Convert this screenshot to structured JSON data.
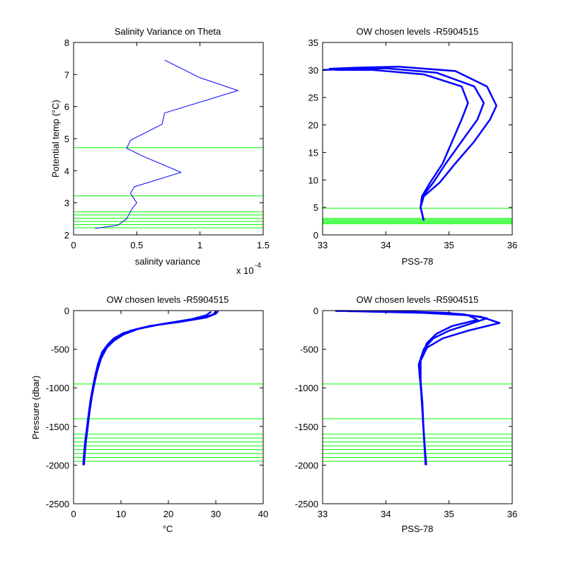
{
  "colors": {
    "profile": "#0000ff",
    "level": "#00ff00",
    "axis": "#000000"
  },
  "chart_data": [
    {
      "id": "p1",
      "type": "line",
      "title": "Salinity Variance on Theta",
      "xlabel": "salinity variance",
      "ylabel": "Potential temp (°C)",
      "x_exponent": "x 10",
      "x_exponent_power": "-4",
      "xlim": [
        0,
        1.5
      ],
      "ylim": [
        2,
        8
      ],
      "xticks": [
        0,
        0.5,
        1,
        1.5
      ],
      "xtick_labels": [
        "0",
        "0.5",
        "1",
        "1.5"
      ],
      "yticks": [
        2,
        3,
        4,
        5,
        6,
        7,
        8
      ],
      "ytick_labels": [
        "2",
        "3",
        "4",
        "5",
        "6",
        "7",
        "8"
      ],
      "series": [
        {
          "values": [
            [
              0.72,
              7.45
            ],
            [
              1.0,
              6.9
            ],
            [
              1.3,
              6.5
            ],
            [
              0.72,
              5.8
            ],
            [
              0.7,
              5.45
            ],
            [
              0.45,
              4.95
            ],
            [
              0.42,
              4.7
            ],
            [
              0.55,
              4.45
            ],
            [
              0.85,
              3.95
            ],
            [
              0.48,
              3.5
            ],
            [
              0.45,
              3.3
            ],
            [
              0.5,
              3.0
            ],
            [
              0.46,
              2.8
            ],
            [
              0.42,
              2.5
            ],
            [
              0.35,
              2.3
            ],
            [
              0.17,
              2.2
            ]
          ]
        }
      ],
      "levels": [
        4.72,
        3.22,
        2.72,
        2.62,
        2.52,
        2.42,
        2.32,
        2.22
      ]
    },
    {
      "id": "p2",
      "type": "line",
      "title": "OW chosen levels -R5904515",
      "xlabel": "PSS-78",
      "ylabel": "",
      "xlim": [
        33,
        36
      ],
      "ylim": [
        0,
        35
      ],
      "xticks": [
        33,
        34,
        35,
        36
      ],
      "xtick_labels": [
        "33",
        "34",
        "35",
        "36"
      ],
      "yticks": [
        0,
        5,
        10,
        15,
        20,
        25,
        30,
        35
      ],
      "ytick_labels": [
        "0",
        "5",
        "10",
        "15",
        "20",
        "25",
        "30",
        "35"
      ],
      "series": [
        {
          "values": [
            [
              34.6,
              2.6
            ],
            [
              34.55,
              5.0
            ],
            [
              34.58,
              7.0
            ],
            [
              34.75,
              9.5
            ],
            [
              34.95,
              13.0
            ],
            [
              35.2,
              17.0
            ],
            [
              35.45,
              21.0
            ],
            [
              35.55,
              24.0
            ],
            [
              35.4,
              27.0
            ],
            [
              34.8,
              29.5
            ],
            [
              34.0,
              30.3
            ],
            [
              33.3,
              30.1
            ],
            [
              33.0,
              30.0
            ]
          ]
        },
        {
          "values": [
            [
              34.6,
              2.6
            ],
            [
              34.55,
              5.0
            ],
            [
              34.6,
              7.0
            ],
            [
              34.85,
              9.5
            ],
            [
              35.1,
              13.0
            ],
            [
              35.4,
              17.0
            ],
            [
              35.65,
              21.0
            ],
            [
              35.75,
              23.5
            ],
            [
              35.6,
              27.0
            ],
            [
              35.1,
              29.8
            ],
            [
              34.2,
              30.6
            ],
            [
              33.5,
              30.4
            ],
            [
              33.1,
              30.2
            ]
          ]
        },
        {
          "values": [
            [
              34.6,
              2.6
            ],
            [
              34.55,
              5.0
            ],
            [
              34.57,
              7.0
            ],
            [
              34.7,
              9.5
            ],
            [
              34.9,
              13.0
            ],
            [
              35.05,
              17.0
            ],
            [
              35.2,
              21.0
            ],
            [
              35.3,
              24.0
            ],
            [
              35.2,
              27.0
            ],
            [
              34.6,
              29.2
            ],
            [
              33.8,
              30.0
            ],
            [
              33.2,
              30.0
            ]
          ]
        }
      ],
      "levels": [
        4.85,
        3.0,
        2.8,
        2.6,
        2.4,
        2.2,
        2.05
      ]
    },
    {
      "id": "p3",
      "type": "line",
      "title": "OW chosen levels -R5904515",
      "xlabel": "°C",
      "ylabel": "Pressure (dbar)",
      "xlim": [
        0,
        40
      ],
      "ylim": [
        -2500,
        0
      ],
      "xticks": [
        0,
        10,
        20,
        30,
        40
      ],
      "xtick_labels": [
        "0",
        "10",
        "20",
        "30",
        "40"
      ],
      "yticks": [
        0,
        -500,
        -1000,
        -1500,
        -2000,
        -2500
      ],
      "ytick_labels": [
        "0",
        "-500",
        "-1000",
        "-1500",
        "-2000",
        "-2500"
      ],
      "series": [
        {
          "values": [
            [
              30.0,
              -10
            ],
            [
              29.5,
              -50
            ],
            [
              27.0,
              -100
            ],
            [
              22.0,
              -150
            ],
            [
              16.0,
              -200
            ],
            [
              12.0,
              -260
            ],
            [
              9.5,
              -330
            ],
            [
              8.0,
              -400
            ],
            [
              6.5,
              -500
            ],
            [
              5.5,
              -650
            ],
            [
              4.8,
              -800
            ],
            [
              4.3,
              -950
            ],
            [
              3.8,
              -1100
            ],
            [
              3.3,
              -1300
            ],
            [
              2.9,
              -1500
            ],
            [
              2.5,
              -1700
            ],
            [
              2.2,
              -1900
            ],
            [
              2.1,
              -2000
            ]
          ]
        },
        {
          "values": [
            [
              30.5,
              -5
            ],
            [
              30.0,
              -40
            ],
            [
              28.0,
              -90
            ],
            [
              24.0,
              -130
            ],
            [
              18.0,
              -180
            ],
            [
              13.5,
              -240
            ],
            [
              10.5,
              -310
            ],
            [
              8.5,
              -390
            ],
            [
              7.0,
              -480
            ],
            [
              5.8,
              -620
            ],
            [
              5.0,
              -780
            ],
            [
              4.4,
              -940
            ],
            [
              3.9,
              -1100
            ],
            [
              3.4,
              -1300
            ],
            [
              3.0,
              -1500
            ],
            [
              2.6,
              -1700
            ],
            [
              2.3,
              -1900
            ],
            [
              2.2,
              -2000
            ]
          ]
        },
        {
          "values": [
            [
              29.0,
              -15
            ],
            [
              28.0,
              -60
            ],
            [
              25.0,
              -110
            ],
            [
              19.0,
              -170
            ],
            [
              14.0,
              -230
            ],
            [
              10.5,
              -290
            ],
            [
              8.5,
              -360
            ],
            [
              7.2,
              -440
            ],
            [
              6.0,
              -540
            ],
            [
              5.2,
              -680
            ],
            [
              4.6,
              -830
            ],
            [
              4.1,
              -980
            ],
            [
              3.6,
              -1150
            ],
            [
              3.2,
              -1330
            ],
            [
              2.8,
              -1520
            ],
            [
              2.4,
              -1720
            ],
            [
              2.15,
              -1900
            ],
            [
              2.05,
              -2000
            ]
          ]
        }
      ],
      "levels": [
        -950,
        -1400,
        -1600,
        -1650,
        -1700,
        -1750,
        -1800,
        -1850,
        -1900,
        -1950
      ]
    },
    {
      "id": "p4",
      "type": "line",
      "title": "OW chosen levels -R5904515",
      "xlabel": "PSS-78",
      "ylabel": "",
      "xlim": [
        33,
        36
      ],
      "ylim": [
        -2500,
        0
      ],
      "xticks": [
        33,
        34,
        35,
        36
      ],
      "xtick_labels": [
        "33",
        "34",
        "35",
        "36"
      ],
      "yticks": [
        0,
        -500,
        -1000,
        -1500,
        -2000,
        -2500
      ],
      "ytick_labels": [
        "0",
        "-500",
        "-1000",
        "-1500",
        "-2000",
        "-2500"
      ],
      "series": [
        {
          "values": [
            [
              33.2,
              -5
            ],
            [
              34.2,
              -10
            ],
            [
              35.0,
              -30
            ],
            [
              35.5,
              -80
            ],
            [
              35.8,
              -160
            ],
            [
              35.3,
              -260
            ],
            [
              34.9,
              -360
            ],
            [
              34.65,
              -480
            ],
            [
              34.55,
              -650
            ],
            [
              34.55,
              -900
            ],
            [
              34.58,
              -1200
            ],
            [
              34.6,
              -1600
            ],
            [
              34.63,
              -2000
            ]
          ]
        },
        {
          "values": [
            [
              33.4,
              -8
            ],
            [
              34.4,
              -20
            ],
            [
              35.2,
              -45
            ],
            [
              35.6,
              -100
            ],
            [
              35.3,
              -180
            ],
            [
              35.0,
              -260
            ],
            [
              34.75,
              -360
            ],
            [
              34.6,
              -500
            ],
            [
              34.52,
              -700
            ],
            [
              34.55,
              -950
            ],
            [
              34.58,
              -1300
            ],
            [
              34.61,
              -1700
            ],
            [
              34.64,
              -2000
            ]
          ]
        },
        {
          "values": [
            [
              33.6,
              -10
            ],
            [
              34.6,
              -30
            ],
            [
              35.3,
              -60
            ],
            [
              35.45,
              -120
            ],
            [
              35.05,
              -200
            ],
            [
              34.8,
              -300
            ],
            [
              34.65,
              -420
            ],
            [
              34.56,
              -600
            ],
            [
              34.53,
              -800
            ],
            [
              34.56,
              -1050
            ],
            [
              34.59,
              -1450
            ],
            [
              34.62,
              -1800
            ],
            [
              34.63,
              -2000
            ]
          ]
        }
      ],
      "levels": [
        -950,
        -1400,
        -1600,
        -1650,
        -1700,
        -1750,
        -1800,
        -1850,
        -1900,
        -1950
      ]
    }
  ]
}
